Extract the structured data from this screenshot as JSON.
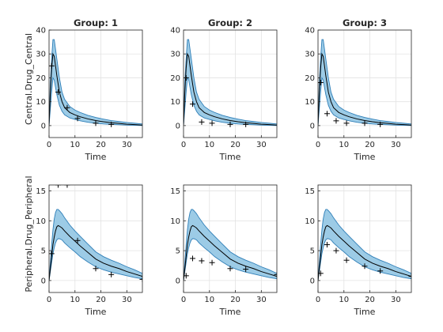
{
  "figure": {
    "xlabel": "Time",
    "ylabels": [
      "Central.Drug_Central",
      "Peripheral.Drug_Peripheral"
    ]
  },
  "chart_data": [
    {
      "type": "line",
      "title": "Group: 1",
      "xlabel": "Time",
      "ylabel": "Central.Drug_Central",
      "xlim": [
        0,
        36
      ],
      "ylim": [
        -5,
        40
      ],
      "xticks": [
        "0",
        "10",
        "20",
        "30"
      ],
      "yticks": [
        "0",
        "10",
        "20",
        "30",
        "40"
      ],
      "grid": true,
      "prediction": {
        "t": [
          0,
          0.5,
          1,
          1.5,
          2,
          3,
          4,
          5,
          6,
          8,
          10,
          12,
          15,
          18,
          21,
          24,
          27,
          30,
          33,
          36
        ],
        "median": [
          0,
          14,
          24,
          30,
          29,
          21,
          14,
          10,
          7.5,
          5.5,
          4.5,
          3.7,
          2.8,
          2.1,
          1.6,
          1.2,
          0.9,
          0.6,
          0.4,
          0.2
        ],
        "lower": [
          0,
          7,
          14,
          20,
          19,
          13,
          8.5,
          6,
          4.5,
          3.2,
          2.6,
          2,
          1.4,
          1,
          0.7,
          0.5,
          0.35,
          0.2,
          0.1,
          0.05
        ],
        "upper": [
          0,
          18,
          28,
          36,
          36,
          28,
          20,
          14,
          11,
          8,
          6.5,
          5.5,
          4.3,
          3.4,
          2.7,
          2.1,
          1.7,
          1.3,
          1,
          0.7
        ]
      },
      "observed": {
        "t": [
          1,
          3.5,
          7,
          11,
          18,
          24
        ],
        "y": [
          25,
          14,
          7.5,
          3,
          1,
          0.5
        ]
      }
    },
    {
      "type": "line",
      "title": "Group: 2",
      "xlabel": "Time",
      "ylabel": "",
      "xlim": [
        0,
        36
      ],
      "ylim": [
        -5,
        40
      ],
      "xticks": [
        "0",
        "10",
        "20",
        "30"
      ],
      "yticks": [
        "0",
        "10",
        "20",
        "30",
        "40"
      ],
      "grid": true,
      "prediction": {
        "t": [
          0,
          0.5,
          1,
          1.5,
          2,
          3,
          4,
          5,
          6,
          8,
          10,
          12,
          15,
          18,
          21,
          24,
          27,
          30,
          33,
          36
        ],
        "median": [
          0,
          14,
          24,
          30,
          29,
          21,
          14,
          10,
          7.5,
          5.5,
          4.5,
          3.7,
          2.8,
          2.1,
          1.6,
          1.2,
          0.9,
          0.6,
          0.4,
          0.2
        ],
        "lower": [
          0,
          7,
          14,
          20,
          19,
          13,
          8.5,
          6,
          4.5,
          3.2,
          2.6,
          2,
          1.4,
          1,
          0.7,
          0.5,
          0.35,
          0.2,
          0.1,
          0.05
        ],
        "upper": [
          0,
          18,
          28,
          36,
          36,
          28,
          20,
          14,
          11,
          8,
          6.5,
          5.5,
          4.3,
          3.4,
          2.7,
          2.1,
          1.7,
          1.3,
          1,
          0.7
        ]
      },
      "observed": {
        "t": [
          1,
          3.5,
          7,
          11,
          18,
          24
        ],
        "y": [
          20,
          9,
          1.5,
          1,
          0.5,
          0.5
        ]
      }
    },
    {
      "type": "line",
      "title": "Group: 3",
      "xlabel": "Time",
      "ylabel": "",
      "xlim": [
        0,
        36
      ],
      "ylim": [
        -5,
        40
      ],
      "xticks": [
        "0",
        "10",
        "20",
        "30"
      ],
      "yticks": [
        "0",
        "10",
        "20",
        "30",
        "40"
      ],
      "grid": true,
      "prediction": {
        "t": [
          0,
          0.5,
          1,
          1.5,
          2,
          3,
          4,
          5,
          6,
          8,
          10,
          12,
          15,
          18,
          21,
          24,
          27,
          30,
          33,
          36
        ],
        "median": [
          0,
          14,
          24,
          30,
          29,
          21,
          14,
          10,
          7.5,
          5.5,
          4.5,
          3.7,
          2.8,
          2.1,
          1.6,
          1.2,
          0.9,
          0.6,
          0.4,
          0.2
        ],
        "lower": [
          0,
          7,
          14,
          20,
          19,
          13,
          8.5,
          6,
          4.5,
          3.2,
          2.6,
          2,
          1.4,
          1,
          0.7,
          0.5,
          0.35,
          0.2,
          0.1,
          0.05
        ],
        "upper": [
          0,
          18,
          28,
          36,
          36,
          28,
          20,
          14,
          11,
          8,
          6.5,
          5.5,
          4.3,
          3.4,
          2.7,
          2.1,
          1.7,
          1.3,
          1,
          0.7
        ]
      },
      "observed": {
        "t": [
          1,
          3.5,
          7,
          11,
          18,
          24
        ],
        "y": [
          18,
          5,
          2,
          1,
          1,
          0.5
        ]
      }
    },
    {
      "type": "line",
      "title": "",
      "xlabel": "Time",
      "ylabel": "Peripheral.Drug_Peripheral",
      "xlim": [
        0,
        36
      ],
      "ylim": [
        -2,
        16
      ],
      "xticks": [
        "0",
        "10",
        "20",
        "30"
      ],
      "yticks": [
        "0",
        "5",
        "10",
        "15"
      ],
      "grid": true,
      "prediction": {
        "t": [
          0,
          0.5,
          1,
          1.5,
          2,
          2.5,
          3,
          3.5,
          4,
          5,
          6,
          8,
          10,
          12,
          15,
          18,
          21,
          24,
          27,
          30,
          33,
          36
        ],
        "median": [
          0,
          2,
          4,
          6,
          7.3,
          8.3,
          9,
          9.2,
          9.1,
          8.8,
          8.3,
          7.4,
          6.6,
          5.8,
          4.7,
          3.6,
          2.9,
          2.4,
          2,
          1.5,
          1.1,
          0.7
        ],
        "lower": [
          0,
          1.5,
          3,
          4.5,
          5.5,
          6.3,
          6.8,
          7,
          7,
          6.8,
          6.3,
          5.5,
          4.8,
          4,
          3.1,
          2.3,
          1.8,
          1.4,
          1.1,
          0.8,
          0.5,
          0.3
        ],
        "upper": [
          0,
          3,
          6,
          8.5,
          10.3,
          11.4,
          11.9,
          11.9,
          11.7,
          11.2,
          10.5,
          9.3,
          8.3,
          7.4,
          6.1,
          4.8,
          4,
          3.4,
          2.9,
          2.3,
          1.8,
          1.2
        ]
      },
      "observed": {
        "t": [
          1,
          3.5,
          7,
          11,
          18,
          24,
          36
        ],
        "y": [
          4.5,
          16,
          16,
          6.7,
          2,
          1,
          0.2
        ]
      }
    },
    {
      "type": "line",
      "title": "",
      "xlabel": "Time",
      "ylabel": "",
      "xlim": [
        0,
        36
      ],
      "ylim": [
        -2,
        16
      ],
      "xticks": [
        "0",
        "10",
        "20",
        "30"
      ],
      "yticks": [
        "0",
        "5",
        "10",
        "15"
      ],
      "grid": true,
      "prediction": {
        "t": [
          0,
          0.5,
          1,
          1.5,
          2,
          2.5,
          3,
          3.5,
          4,
          5,
          6,
          8,
          10,
          12,
          15,
          18,
          21,
          24,
          27,
          30,
          33,
          36
        ],
        "median": [
          0,
          2,
          4,
          6,
          7.3,
          8.3,
          9,
          9.2,
          9.1,
          8.8,
          8.3,
          7.4,
          6.6,
          5.8,
          4.7,
          3.6,
          2.9,
          2.4,
          2,
          1.5,
          1.1,
          0.7
        ],
        "lower": [
          0,
          1.5,
          3,
          4.5,
          5.5,
          6.3,
          6.8,
          7,
          7,
          6.8,
          6.3,
          5.5,
          4.8,
          4,
          3.1,
          2.3,
          1.8,
          1.4,
          1.1,
          0.8,
          0.5,
          0.3
        ],
        "upper": [
          0,
          3,
          6,
          8.5,
          10.3,
          11.4,
          11.9,
          11.9,
          11.7,
          11.2,
          10.5,
          9.3,
          8.3,
          7.4,
          6.1,
          4.8,
          4,
          3.4,
          2.9,
          2.3,
          1.8,
          1.2
        ]
      },
      "observed": {
        "t": [
          1,
          3.5,
          7,
          11,
          18,
          24,
          36
        ],
        "y": [
          0.8,
          3.7,
          3.3,
          3,
          2,
          1.9,
          1
        ]
      }
    },
    {
      "type": "line",
      "title": "",
      "xlabel": "Time",
      "ylabel": "",
      "xlim": [
        0,
        36
      ],
      "ylim": [
        -2,
        16
      ],
      "xticks": [
        "0",
        "10",
        "20",
        "30"
      ],
      "yticks": [
        "0",
        "5",
        "10",
        "15"
      ],
      "grid": true,
      "prediction": {
        "t": [
          0,
          0.5,
          1,
          1.5,
          2,
          2.5,
          3,
          3.5,
          4,
          5,
          6,
          8,
          10,
          12,
          15,
          18,
          21,
          24,
          27,
          30,
          33,
          36
        ],
        "median": [
          0,
          2,
          4,
          6,
          7.3,
          8.3,
          9,
          9.2,
          9.1,
          8.8,
          8.3,
          7.4,
          6.6,
          5.8,
          4.7,
          3.6,
          2.9,
          2.4,
          2,
          1.5,
          1.1,
          0.7
        ],
        "lower": [
          0,
          1.5,
          3,
          4.5,
          5.5,
          6.3,
          6.8,
          7,
          7,
          6.8,
          6.3,
          5.5,
          4.8,
          4,
          3.1,
          2.3,
          1.8,
          1.4,
          1.1,
          0.8,
          0.5,
          0.3
        ],
        "upper": [
          0,
          3,
          6,
          8.5,
          10.3,
          11.4,
          11.9,
          11.9,
          11.7,
          11.2,
          10.5,
          9.3,
          8.3,
          7.4,
          6.1,
          4.8,
          4,
          3.4,
          2.9,
          2.3,
          1.8,
          1.2
        ]
      },
      "observed": {
        "t": [
          1,
          3.5,
          7,
          11,
          18,
          24,
          36
        ],
        "y": [
          1.2,
          6,
          5,
          3.4,
          2.4,
          1.6,
          0.7
        ]
      }
    }
  ],
  "colors": {
    "band_fill": "#9ccbe6",
    "band_edge": "#2f7fb8",
    "median_line": "#000000",
    "marker": "#000000",
    "grid": "#e3e3e3",
    "axes": "#262626"
  }
}
